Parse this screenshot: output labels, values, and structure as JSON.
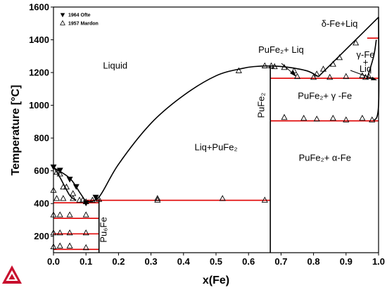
{
  "chart_data": {
    "type": "scatter",
    "xlabel": "x(Fe)",
    "ylabel": "Temperature [°C]",
    "xlim": [
      0,
      1.0
    ],
    "ylim": [
      100,
      1600
    ],
    "xticks": [
      "0.0",
      "0.1",
      "0.2",
      "0.3",
      "0.4",
      "0.5",
      "0.6",
      "0.7",
      "0.8",
      "0.9",
      "1.0"
    ],
    "yticks": [
      "200",
      "400",
      "600",
      "800",
      "1000",
      "1200",
      "1400",
      "1600"
    ],
    "legend": {
      "placement": "top-left",
      "entries": [
        {
          "name": "1964 Ofte",
          "marker": "filled-down-triangle"
        },
        {
          "name": "1957 Mardon",
          "marker": "open-up-triangle"
        }
      ]
    },
    "colors": {
      "phase_boundary": "#000000",
      "invariant_line": "#e00000"
    },
    "phase_labels": [
      {
        "text": "Liquid",
        "x": 0.19,
        "y": 1225
      },
      {
        "text": "Liq+PuFe₂",
        "x": 0.5,
        "y": 725
      },
      {
        "text": "PuFe₂+ Liq",
        "x": 0.7,
        "y": 1320
      },
      {
        "text": "δ-Fe+Liq",
        "x": 0.88,
        "y": 1480
      },
      {
        "text": "γ-Fe",
        "x": 0.96,
        "y": 1290
      },
      {
        "text": "+",
        "x": 0.96,
        "y": 1245
      },
      {
        "text": "Liq",
        "x": 0.96,
        "y": 1205
      },
      {
        "text": "PuFe₂+ γ -Fe",
        "x": 0.835,
        "y": 1040
      },
      {
        "text": "PuFe₂+ α-Fe",
        "x": 0.835,
        "y": 660
      },
      {
        "text": "PuFe₂",
        "x": 0.648,
        "y": 1000,
        "rotate": true
      },
      {
        "text": "Pu₆Fe",
        "x": 0.163,
        "y": 240,
        "rotate": true
      }
    ],
    "liquidus_left": [
      [
        0.0,
        620
      ],
      [
        0.05,
        555
      ],
      [
        0.08,
        470
      ],
      [
        0.1,
        410
      ]
    ],
    "liquidus_middle": [
      [
        0.1,
        410
      ],
      [
        0.14,
        440
      ],
      [
        0.2,
        640
      ],
      [
        0.3,
        890
      ],
      [
        0.4,
        1060
      ],
      [
        0.5,
        1180
      ],
      [
        0.58,
        1225
      ],
      [
        0.62,
        1237
      ],
      [
        0.667,
        1240
      ],
      [
        0.72,
        1233
      ],
      [
        0.78,
        1210
      ],
      [
        0.815,
        1175
      ]
    ],
    "liquidus_right": [
      [
        0.815,
        1175
      ],
      [
        1.0,
        1538
      ]
    ],
    "gamma_boundary": [
      [
        0.965,
        1165
      ],
      [
        0.985,
        1300
      ],
      [
        0.993,
        1400
      ]
    ],
    "fe_solvus": [
      [
        0.985,
        905
      ],
      [
        1.0,
        1000
      ],
      [
        1.0,
        1538
      ]
    ],
    "solidus_hyper": [
      [
        0.0,
        625
      ],
      [
        0.02,
        560
      ],
      [
        0.05,
        450
      ],
      [
        0.07,
        420
      ]
    ],
    "vertical_lines": [
      {
        "x": 0.14,
        "y": [
          100,
          430
        ]
      },
      {
        "x": 0.667,
        "y": [
          905,
          1240
        ]
      },
      {
        "x": 0.667,
        "y": [
          100,
          905
        ]
      }
    ],
    "invariant_lines": [
      {
        "x": [
          0.0,
          0.14
        ],
        "y": 120
      },
      {
        "x": [
          0.0,
          0.14
        ],
        "y": 215
      },
      {
        "x": [
          0.0,
          0.14
        ],
        "y": 310
      },
      {
        "x": [
          0.0,
          0.14
        ],
        "y": 405
      },
      {
        "x": [
          0.1,
          0.667
        ],
        "y": 420
      },
      {
        "x": [
          0.667,
          1.0
        ],
        "y": 905
      },
      {
        "x": [
          0.667,
          1.0
        ],
        "y": 1165
      },
      {
        "x": [
          0.965,
          1.0
        ],
        "y": 1410
      }
    ],
    "series": [
      {
        "name": "1964 Ofte",
        "marker": "filled-down-triangle",
        "points": [
          [
            0.0,
            625
          ],
          [
            0.02,
            605
          ],
          [
            0.05,
            550
          ],
          [
            0.07,
            505
          ],
          [
            0.1,
            405
          ],
          [
            0.13,
            440
          ]
        ]
      },
      {
        "name": "1957 Mardon",
        "marker": "open-up-triangle",
        "points": [
          [
            0.0,
            480
          ],
          [
            0.01,
            590
          ],
          [
            0.02,
            580
          ],
          [
            0.03,
            500
          ],
          [
            0.04,
            500
          ],
          [
            0.06,
            460
          ],
          [
            0.08,
            420
          ],
          [
            0.1,
            410
          ],
          [
            0.12,
            420
          ],
          [
            0.01,
            430
          ],
          [
            0.03,
            430
          ],
          [
            0.06,
            430
          ],
          [
            0.09,
            420
          ],
          [
            0.0,
            330
          ],
          [
            0.02,
            330
          ],
          [
            0.05,
            330
          ],
          [
            0.1,
            330
          ],
          [
            0.0,
            220
          ],
          [
            0.02,
            220
          ],
          [
            0.05,
            220
          ],
          [
            0.1,
            220
          ],
          [
            0.0,
            135
          ],
          [
            0.02,
            140
          ],
          [
            0.05,
            140
          ],
          [
            0.1,
            130
          ],
          [
            0.14,
            425
          ],
          [
            0.32,
            420
          ],
          [
            0.32,
            430
          ],
          [
            0.52,
            430
          ],
          [
            0.65,
            420
          ],
          [
            0.57,
            1210
          ],
          [
            0.65,
            1240
          ],
          [
            0.67,
            1240
          ],
          [
            0.68,
            1235
          ],
          [
            0.71,
            1230
          ],
          [
            0.74,
            1210
          ],
          [
            0.81,
            1190
          ],
          [
            0.83,
            1220
          ],
          [
            0.86,
            1250
          ],
          [
            0.88,
            1290
          ],
          [
            0.93,
            1380
          ],
          [
            0.95,
            1180
          ],
          [
            0.96,
            1170
          ],
          [
            0.71,
            925
          ],
          [
            0.77,
            920
          ],
          [
            0.81,
            915
          ],
          [
            0.86,
            920
          ],
          [
            0.9,
            910
          ],
          [
            0.95,
            920
          ],
          [
            0.98,
            910
          ],
          [
            0.75,
            1175
          ],
          [
            0.8,
            1170
          ],
          [
            0.85,
            1170
          ],
          [
            0.9,
            1175
          ],
          [
            0.97,
            1175
          ]
        ]
      }
    ]
  }
}
